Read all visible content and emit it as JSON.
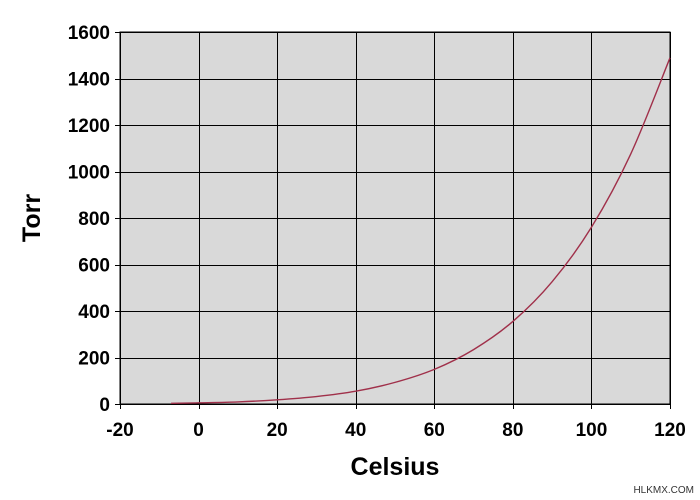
{
  "chart_data": {
    "type": "line",
    "xlabel": "Celsius",
    "ylabel": "Torr",
    "xlim": [
      -20,
      120
    ],
    "ylim": [
      0,
      1600
    ],
    "x_ticks": [
      -20,
      0,
      20,
      40,
      60,
      80,
      100,
      120
    ],
    "y_ticks": [
      0,
      200,
      400,
      600,
      800,
      1000,
      1200,
      1400,
      1600
    ],
    "grid": true,
    "legend": "none",
    "series": [
      {
        "color": "#a0304a",
        "x": [
          -7,
          0,
          10,
          20,
          30,
          40,
          50,
          60,
          70,
          80,
          90,
          100,
          110,
          120
        ],
        "y": [
          3,
          5,
          9,
          18,
          32,
          55,
          93,
          149,
          234,
          355,
          526,
          760,
          1075,
          1489
        ]
      }
    ],
    "colors": {
      "plot_background": "#d9d9d9",
      "grid": "#000000",
      "line": "#a0304a"
    }
  },
  "watermark": "HLKMX.COM"
}
